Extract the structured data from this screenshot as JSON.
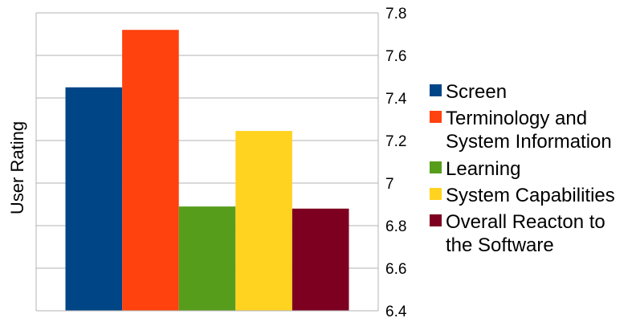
{
  "chart_data": {
    "type": "bar",
    "ylabel": "User Rating",
    "ylim": [
      6.4,
      7.8
    ],
    "yticks": [
      "6.4",
      "6.6",
      "6.8",
      "7",
      "7.2",
      "7.4",
      "7.6",
      "7.8"
    ],
    "y_axis_side": "right",
    "grid": true,
    "legend_position": "right",
    "series": [
      {
        "name": "Screen",
        "value": 7.45,
        "color": "#004586"
      },
      {
        "name": "Terminology and System Information",
        "label_lines": [
          "Terminology and",
          "System Information"
        ],
        "value": 7.72,
        "color": "#ff420e"
      },
      {
        "name": "Learning",
        "value": 6.89,
        "color": "#579d1c"
      },
      {
        "name": "System Capabilities",
        "value": 7.245,
        "color": "#ffd320"
      },
      {
        "name": "Overall Reacton to the Software",
        "label_lines": [
          "Overall Reacton to",
          "the Software"
        ],
        "value": 6.88,
        "color": "#7e0021"
      }
    ]
  }
}
